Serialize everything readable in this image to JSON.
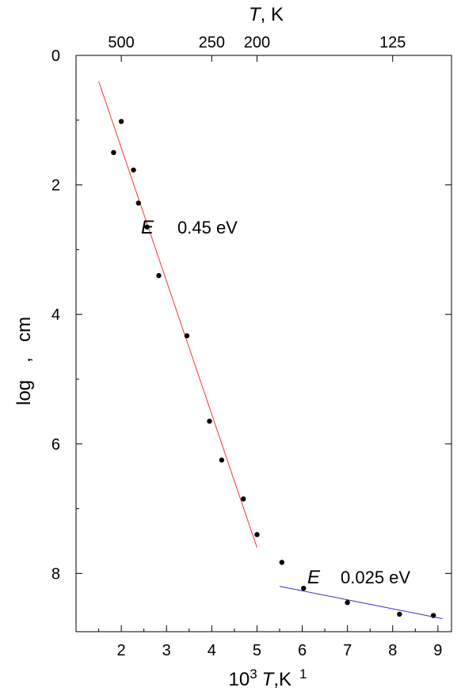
{
  "chart_data": {
    "type": "scatter",
    "xlabel": {
      "prefix": "10",
      "sup": "3",
      "var": "T",
      "unit": ",K",
      "sup2": "1"
    },
    "top_xlabel": {
      "var": "T",
      "unit": ", K"
    },
    "ylabel": {
      "part1": "log",
      "part2": ",",
      "part3": "cm"
    },
    "xlim": [
      1.0,
      9.3
    ],
    "ylim": [
      0,
      8.9
    ],
    "y_inverted": true,
    "x_ticks": [
      2,
      3,
      4,
      5,
      6,
      7,
      8,
      9
    ],
    "y_ticks": [
      0,
      2,
      4,
      6,
      8
    ],
    "top_ticks": [
      {
        "label": "500",
        "T": 500
      },
      {
        "label": "250",
        "T": 250
      },
      {
        "label": "200",
        "T": 200
      },
      {
        "label": "125",
        "T": 125
      }
    ],
    "points": {
      "x": [
        1.83,
        2.0,
        2.27,
        2.38,
        2.57,
        2.83,
        3.45,
        3.95,
        4.22,
        4.7,
        5.0,
        5.55,
        6.03,
        7.0,
        8.15,
        8.9
      ],
      "y": [
        1.5,
        1.02,
        1.77,
        2.28,
        2.65,
        3.4,
        4.33,
        5.65,
        6.25,
        6.85,
        7.4,
        7.83,
        8.23,
        8.45,
        8.63,
        8.65
      ]
    },
    "fit_lines": [
      {
        "color": "#ff3333",
        "x": [
          1.5,
          5.0
        ],
        "y": [
          0.4,
          7.6
        ]
      },
      {
        "color": "#3333cc",
        "x": [
          5.5,
          9.1
        ],
        "y": [
          8.2,
          8.7
        ]
      }
    ],
    "annotations": [
      {
        "symbol": "E",
        "value": "0.45  eV",
        "x": 2.65,
        "y": 2.5
      },
      {
        "symbol": "E",
        "value": "0.025  eV",
        "x": 6.15,
        "y": 8.1
      }
    ]
  }
}
